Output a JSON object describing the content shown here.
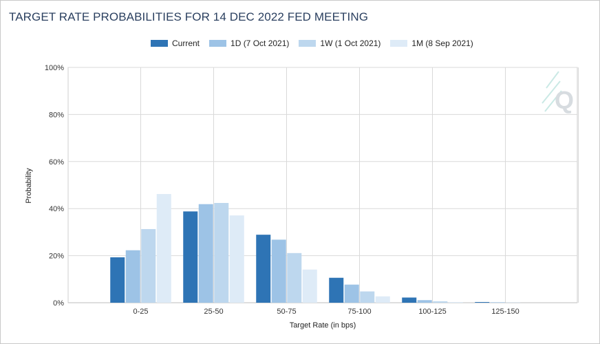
{
  "chart_data": {
    "type": "bar",
    "title": "TARGET RATE PROBABILITIES FOR 14 DEC 2022 FED MEETING",
    "xlabel": "Target Rate (in bps)",
    "ylabel": "Probability",
    "categories": [
      "0-25",
      "25-50",
      "50-75",
      "75-100",
      "100-125",
      "125-150"
    ],
    "ylim": [
      0,
      100
    ],
    "yticks": [
      "0%",
      "20%",
      "40%",
      "60%",
      "80%",
      "100%"
    ],
    "grid": true,
    "legend_position": "top",
    "series": [
      {
        "name": "Current",
        "color": "#2e74b5",
        "values": [
          19.3,
          38.8,
          28.9,
          10.6,
          2.2,
          0.3
        ]
      },
      {
        "name": "1D (7 Oct 2021)",
        "color": "#9dc3e6",
        "values": [
          22.3,
          41.9,
          26.8,
          7.7,
          1.1,
          0.2
        ]
      },
      {
        "name": "1W (1 Oct 2021)",
        "color": "#bdd7ee",
        "values": [
          31.3,
          42.4,
          21.1,
          4.8,
          0.6,
          0.1
        ]
      },
      {
        "name": "1M (8 Sep 2021)",
        "color": "#deebf7",
        "values": [
          46.2,
          37.1,
          14.1,
          2.7,
          0.3,
          0.0
        ]
      }
    ]
  }
}
